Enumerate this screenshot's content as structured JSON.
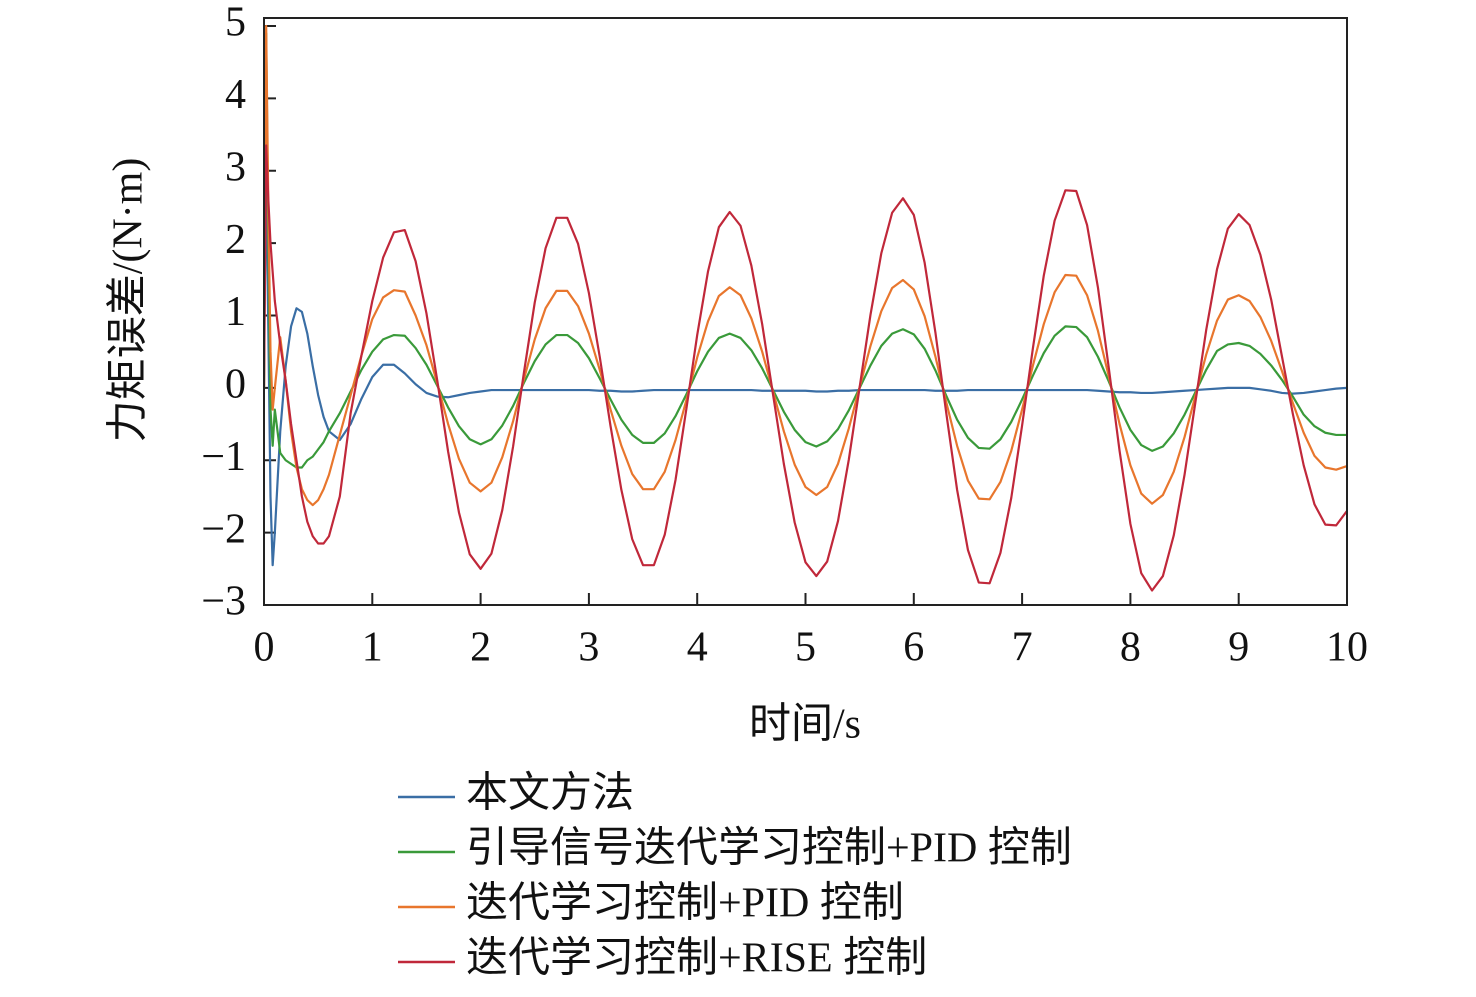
{
  "chart_data": {
    "type": "line",
    "xlabel": "时间/s",
    "ylabel": "力矩误差/(N·m)",
    "x": [
      0,
      0.02,
      0.04,
      0.06,
      0.08,
      0.1,
      0.15,
      0.2,
      0.25,
      0.3,
      0.35,
      0.4,
      0.45,
      0.5,
      0.55,
      0.6,
      0.7,
      0.8,
      0.9,
      1,
      1.1,
      1.2,
      1.3,
      1.4,
      1.5,
      1.6,
      1.7,
      1.8,
      1.9,
      2,
      2.1,
      2.2,
      2.3,
      2.4,
      2.5,
      2.6,
      2.7,
      2.8,
      2.9,
      3,
      3.1,
      3.2,
      3.3,
      3.4,
      3.5,
      3.6,
      3.7,
      3.8,
      3.9,
      4,
      4.1,
      4.2,
      4.3,
      4.4,
      4.5,
      4.6,
      4.7,
      4.8,
      4.9,
      5,
      5.1,
      5.2,
      5.3,
      5.4,
      5.5,
      5.6,
      5.7,
      5.8,
      5.9,
      6,
      6.1,
      6.2,
      6.3,
      6.4,
      6.5,
      6.6,
      6.7,
      6.8,
      6.9,
      7,
      7.1,
      7.2,
      7.3,
      7.4,
      7.5,
      7.6,
      7.7,
      7.8,
      7.9,
      8,
      8.1,
      8.2,
      8.3,
      8.4,
      8.5,
      8.6,
      8.7,
      8.8,
      8.9,
      9,
      9.1,
      9.2,
      9.3,
      9.4,
      9.5,
      9.6,
      9.7,
      9.8,
      9.9,
      10
    ],
    "series": [
      {
        "name": "本文方法",
        "color": "#3a6ea5",
        "values": [
          0.5,
          3.0,
          0.8,
          -1.5,
          -2.45,
          -2.0,
          -0.6,
          0.3,
          0.85,
          1.1,
          1.05,
          0.75,
          0.3,
          -0.1,
          -0.4,
          -0.6,
          -0.72,
          -0.5,
          -0.15,
          0.15,
          0.32,
          0.32,
          0.2,
          0.05,
          -0.07,
          -0.12,
          -0.13,
          -0.1,
          -0.07,
          -0.05,
          -0.03,
          -0.03,
          -0.03,
          -0.03,
          -0.03,
          -0.03,
          -0.03,
          -0.03,
          -0.03,
          -0.03,
          -0.04,
          -0.04,
          -0.05,
          -0.05,
          -0.04,
          -0.03,
          -0.03,
          -0.03,
          -0.03,
          -0.03,
          -0.03,
          -0.03,
          -0.03,
          -0.03,
          -0.03,
          -0.04,
          -0.04,
          -0.04,
          -0.04,
          -0.04,
          -0.05,
          -0.05,
          -0.04,
          -0.04,
          -0.03,
          -0.03,
          -0.03,
          -0.03,
          -0.03,
          -0.03,
          -0.03,
          -0.04,
          -0.04,
          -0.04,
          -0.03,
          -0.03,
          -0.03,
          -0.03,
          -0.03,
          -0.03,
          -0.03,
          -0.03,
          -0.03,
          -0.03,
          -0.03,
          -0.03,
          -0.04,
          -0.05,
          -0.06,
          -0.06,
          -0.07,
          -0.07,
          -0.06,
          -0.05,
          -0.04,
          -0.03,
          -0.02,
          -0.01,
          0.0,
          0.0,
          0.0,
          -0.02,
          -0.04,
          -0.07,
          -0.08,
          -0.07,
          -0.05,
          -0.03,
          -0.01,
          0.0
        ]
      },
      {
        "name": "引导信号迭代学习控制+PID 控制",
        "color": "#3a9a3a",
        "values": [
          0,
          4.9,
          2.0,
          -0.3,
          -0.8,
          -0.3,
          -0.9,
          -1.0,
          -1.05,
          -1.1,
          -1.1,
          -1.0,
          -0.95,
          -0.85,
          -0.75,
          -0.6,
          -0.35,
          -0.05,
          0.25,
          0.5,
          0.67,
          0.73,
          0.72,
          0.55,
          0.32,
          0.03,
          -0.27,
          -0.53,
          -0.71,
          -0.78,
          -0.71,
          -0.52,
          -0.25,
          0.07,
          0.37,
          0.6,
          0.73,
          0.73,
          0.62,
          0.41,
          0.13,
          -0.16,
          -0.44,
          -0.65,
          -0.76,
          -0.76,
          -0.63,
          -0.39,
          -0.09,
          0.23,
          0.5,
          0.69,
          0.75,
          0.69,
          0.52,
          0.27,
          -0.03,
          -0.33,
          -0.58,
          -0.75,
          -0.81,
          -0.74,
          -0.57,
          -0.31,
          0.0,
          0.31,
          0.58,
          0.75,
          0.81,
          0.74,
          0.54,
          0.24,
          -0.11,
          -0.44,
          -0.69,
          -0.83,
          -0.84,
          -0.71,
          -0.47,
          -0.16,
          0.17,
          0.48,
          0.72,
          0.85,
          0.84,
          0.7,
          0.43,
          0.09,
          -0.27,
          -0.58,
          -0.79,
          -0.87,
          -0.81,
          -0.63,
          -0.37,
          -0.06,
          0.25,
          0.51,
          0.6,
          0.62,
          0.58,
          0.47,
          0.31,
          0.11,
          -0.12,
          -0.37,
          -0.53,
          -0.62,
          -0.65,
          -0.65
        ]
      },
      {
        "name": "迭代学习控制+PID 控制",
        "color": "#e8762d",
        "values": [
          0,
          5.0,
          2.5,
          0.5,
          -0.3,
          0.0,
          0.7,
          0.1,
          -0.6,
          -1.1,
          -1.4,
          -1.55,
          -1.62,
          -1.55,
          -1.4,
          -1.2,
          -0.65,
          -0.1,
          0.45,
          0.95,
          1.25,
          1.35,
          1.33,
          1.0,
          0.59,
          0.06,
          -0.5,
          -0.98,
          -1.31,
          -1.43,
          -1.31,
          -0.96,
          -0.46,
          0.12,
          0.67,
          1.1,
          1.34,
          1.34,
          1.13,
          0.75,
          0.25,
          -0.3,
          -0.8,
          -1.19,
          -1.4,
          -1.4,
          -1.16,
          -0.72,
          -0.17,
          0.42,
          0.92,
          1.27,
          1.39,
          1.28,
          0.96,
          0.5,
          -0.05,
          -0.6,
          -1.06,
          -1.37,
          -1.48,
          -1.37,
          -1.05,
          -0.56,
          0.01,
          0.58,
          1.06,
          1.38,
          1.49,
          1.36,
          0.99,
          0.43,
          -0.2,
          -0.8,
          -1.28,
          -1.53,
          -1.54,
          -1.3,
          -0.87,
          -0.3,
          0.31,
          0.88,
          1.32,
          1.56,
          1.55,
          1.28,
          0.79,
          0.16,
          -0.5,
          -1.07,
          -1.46,
          -1.6,
          -1.48,
          -1.16,
          -0.68,
          -0.11,
          0.46,
          0.93,
          1.22,
          1.28,
          1.2,
          0.98,
          0.65,
          0.23,
          -0.21,
          -0.62,
          -0.94,
          -1.1,
          -1.13,
          -1.08
        ]
      },
      {
        "name": "迭代学习控制+RISE 控制",
        "color": "#c0283a",
        "values": [
          0,
          3.35,
          2.6,
          2.0,
          1.6,
          1.2,
          0.6,
          0.1,
          -0.5,
          -1.0,
          -1.5,
          -1.85,
          -2.05,
          -2.15,
          -2.15,
          -2.05,
          -1.5,
          -0.35,
          0.45,
          1.2,
          1.8,
          2.15,
          2.18,
          1.75,
          1.03,
          0.1,
          -0.88,
          -1.72,
          -2.3,
          -2.5,
          -2.29,
          -1.69,
          -0.81,
          0.21,
          1.18,
          1.93,
          2.35,
          2.35,
          1.99,
          1.31,
          0.43,
          -0.53,
          -1.41,
          -2.09,
          -2.45,
          -2.45,
          -2.03,
          -1.27,
          -0.29,
          0.73,
          1.61,
          2.22,
          2.43,
          2.24,
          1.69,
          0.88,
          -0.09,
          -1.05,
          -1.86,
          -2.41,
          -2.6,
          -2.4,
          -1.84,
          -0.99,
          0.01,
          1.01,
          1.86,
          2.42,
          2.62,
          2.39,
          1.73,
          0.76,
          -0.35,
          -1.41,
          -2.24,
          -2.69,
          -2.7,
          -2.28,
          -1.52,
          -0.52,
          0.55,
          1.55,
          2.31,
          2.73,
          2.72,
          2.25,
          1.39,
          0.28,
          -0.87,
          -1.88,
          -2.56,
          -2.8,
          -2.6,
          -2.04,
          -1.2,
          -0.2,
          0.8,
          1.64,
          2.2,
          2.4,
          2.25,
          1.84,
          1.22,
          0.43,
          -0.36,
          -1.07,
          -1.61,
          -1.89,
          -1.9,
          -1.7
        ]
      }
    ],
    "xlim": [
      0,
      10
    ],
    "xticks": [
      0,
      1,
      2,
      3,
      4,
      5,
      6,
      7,
      8,
      9,
      10
    ],
    "ylim": [
      -3,
      5
    ],
    "yticks": [
      {
        "value": -3,
        "label": "−3"
      },
      {
        "value": -2,
        "label": "−2"
      },
      {
        "value": -1,
        "label": "−1"
      },
      0,
      1,
      2,
      3,
      4,
      5
    ],
    "grid": false,
    "legend": "bottom"
  }
}
